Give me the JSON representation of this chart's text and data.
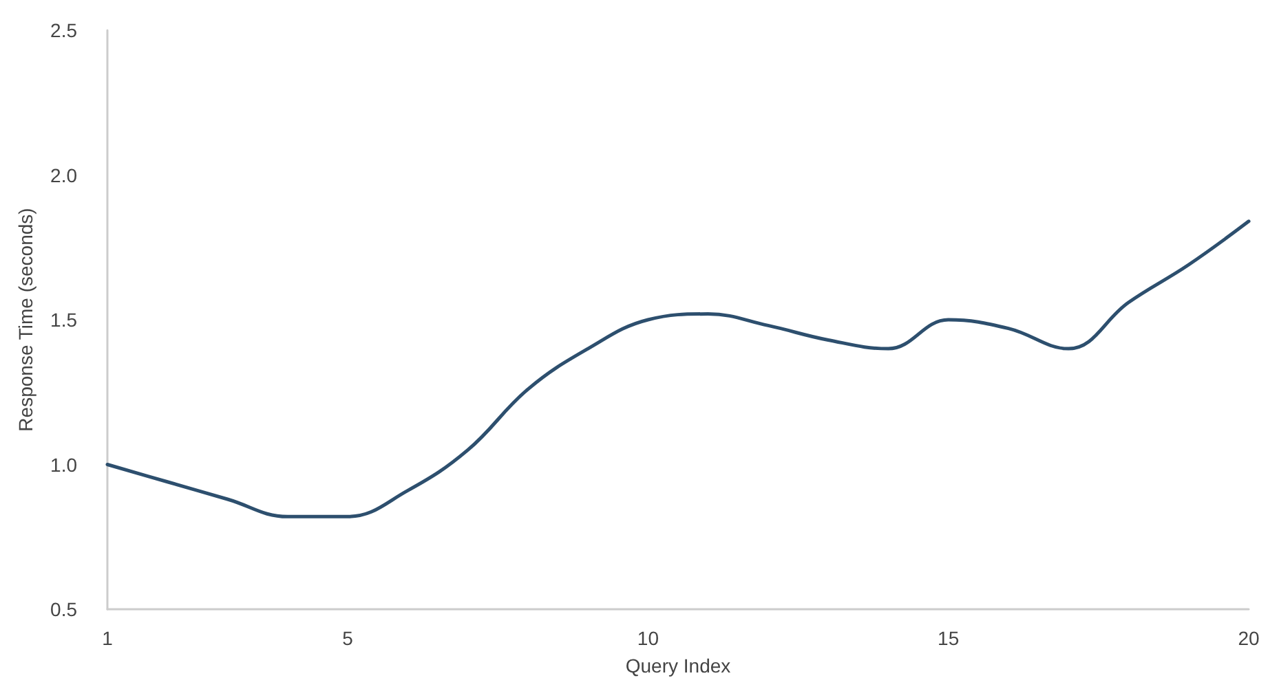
{
  "chart_data": {
    "type": "line",
    "xlabel": "Query Index",
    "ylabel": "Response Time (seconds)",
    "x": [
      1,
      2,
      3,
      4,
      5,
      6,
      7,
      8,
      9,
      10,
      11,
      12,
      13,
      14,
      15,
      16,
      17,
      18,
      19,
      20
    ],
    "series": [
      {
        "color": "#2d4f6e",
        "values": [
          1.0,
          0.94,
          0.88,
          0.82,
          0.82,
          0.91,
          1.05,
          1.26,
          1.4,
          1.5,
          1.52,
          1.48,
          1.43,
          1.4,
          1.5,
          1.47,
          1.4,
          1.56,
          1.69,
          1.84
        ]
      }
    ],
    "xlim": [
      1,
      20
    ],
    "xticks": [
      1,
      5,
      10,
      15,
      20
    ],
    "ylim": [
      0.5,
      2.5
    ],
    "yticks": [
      {
        "value": 0.5,
        "label": "0.5"
      },
      {
        "value": 1,
        "label": "1.0"
      },
      {
        "value": 1.5,
        "label": "1.5"
      },
      {
        "value": 2,
        "label": "2.0"
      },
      {
        "value": 2.5,
        "label": "2.5"
      }
    ],
    "marker": "none",
    "line_style": "solid"
  }
}
